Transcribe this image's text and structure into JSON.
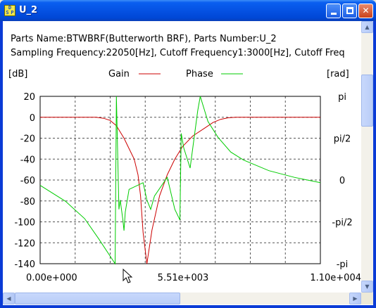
{
  "window": {
    "title": "U_2",
    "icon_letters": [
      "D",
      "S",
      "P"
    ],
    "minimize_label": "minimize",
    "maximize_label": "maximize",
    "close_label": "close"
  },
  "info": {
    "line1": "Parts Name:BTWBRF(Butterworth BRF), Parts Number:U_2",
    "line2": "Sampling Frequency:22050[Hz], Cutoff Frequency1:3000[Hz], Cutoff Freq"
  },
  "colors": {
    "gain": "#cc0000",
    "phase": "#00cc00",
    "grid": "#555555",
    "titlebar": "#0552e3"
  },
  "chart_data": {
    "type": "line",
    "left_unit": "[dB]",
    "right_unit": "[rad]",
    "legend": [
      {
        "name": "Gain",
        "color": "#cc0000"
      },
      {
        "name": "Phase",
        "color": "#00cc00"
      }
    ],
    "x_ticks": [
      "0.00e+000",
      "5.51e+003",
      "1.10e+004"
    ],
    "x_range": [
      0,
      11025
    ],
    "y_left_ticks": [
      "20",
      "0",
      "-20",
      "-40",
      "-60",
      "-80",
      "-100",
      "-120",
      "-140"
    ],
    "y_left_range": [
      -140,
      20
    ],
    "y_right_ticks": [
      "pi",
      "pi/2",
      "0",
      "-pi/2",
      "-pi"
    ],
    "y_right_range": [
      -3.1416,
      3.1416
    ],
    "grid": true,
    "series": [
      {
        "name": "Gain",
        "axis": "left",
        "x": [
          0,
          2200,
          2500,
          2750,
          3000,
          3150,
          3300,
          3500,
          3700,
          3850,
          3950,
          4050,
          4200,
          4400,
          4700,
          5000,
          5300,
          5600,
          6000,
          6500,
          6800,
          7100,
          7400,
          7700,
          8500,
          9500,
          11025
        ],
        "y": [
          0,
          0,
          -1,
          -3,
          -8,
          -14,
          -20,
          -30,
          -40,
          -55,
          -75,
          -110,
          -140,
          -108,
          -75,
          -55,
          -40,
          -28,
          -18,
          -10,
          -5,
          -2,
          -0.5,
          0,
          0,
          0,
          0
        ]
      },
      {
        "name": "Phase",
        "axis": "right",
        "x": [
          0,
          1000,
          1750,
          2300,
          2950,
          3000,
          3100,
          3150,
          3250,
          3300,
          3350,
          3500,
          4050,
          4200,
          4350,
          4500,
          5000,
          5300,
          5500,
          5550,
          5650,
          5900,
          6200,
          6300,
          6600,
          7000,
          7500,
          8000,
          9000,
          10000,
          11025
        ],
        "y": [
          -0.2,
          -0.8,
          -1.45,
          -2.2,
          -3.1416,
          3.1416,
          -1.1,
          -0.75,
          -1.45,
          -1.9,
          -1.2,
          -0.35,
          -0.1,
          -0.75,
          -1.1,
          -0.6,
          0.1,
          -1.1,
          -1.5,
          1.75,
          1.2,
          0.45,
          2.6,
          3.1416,
          2.2,
          1.6,
          1.05,
          0.75,
          0.35,
          0.1,
          -0.1
        ]
      }
    ]
  }
}
